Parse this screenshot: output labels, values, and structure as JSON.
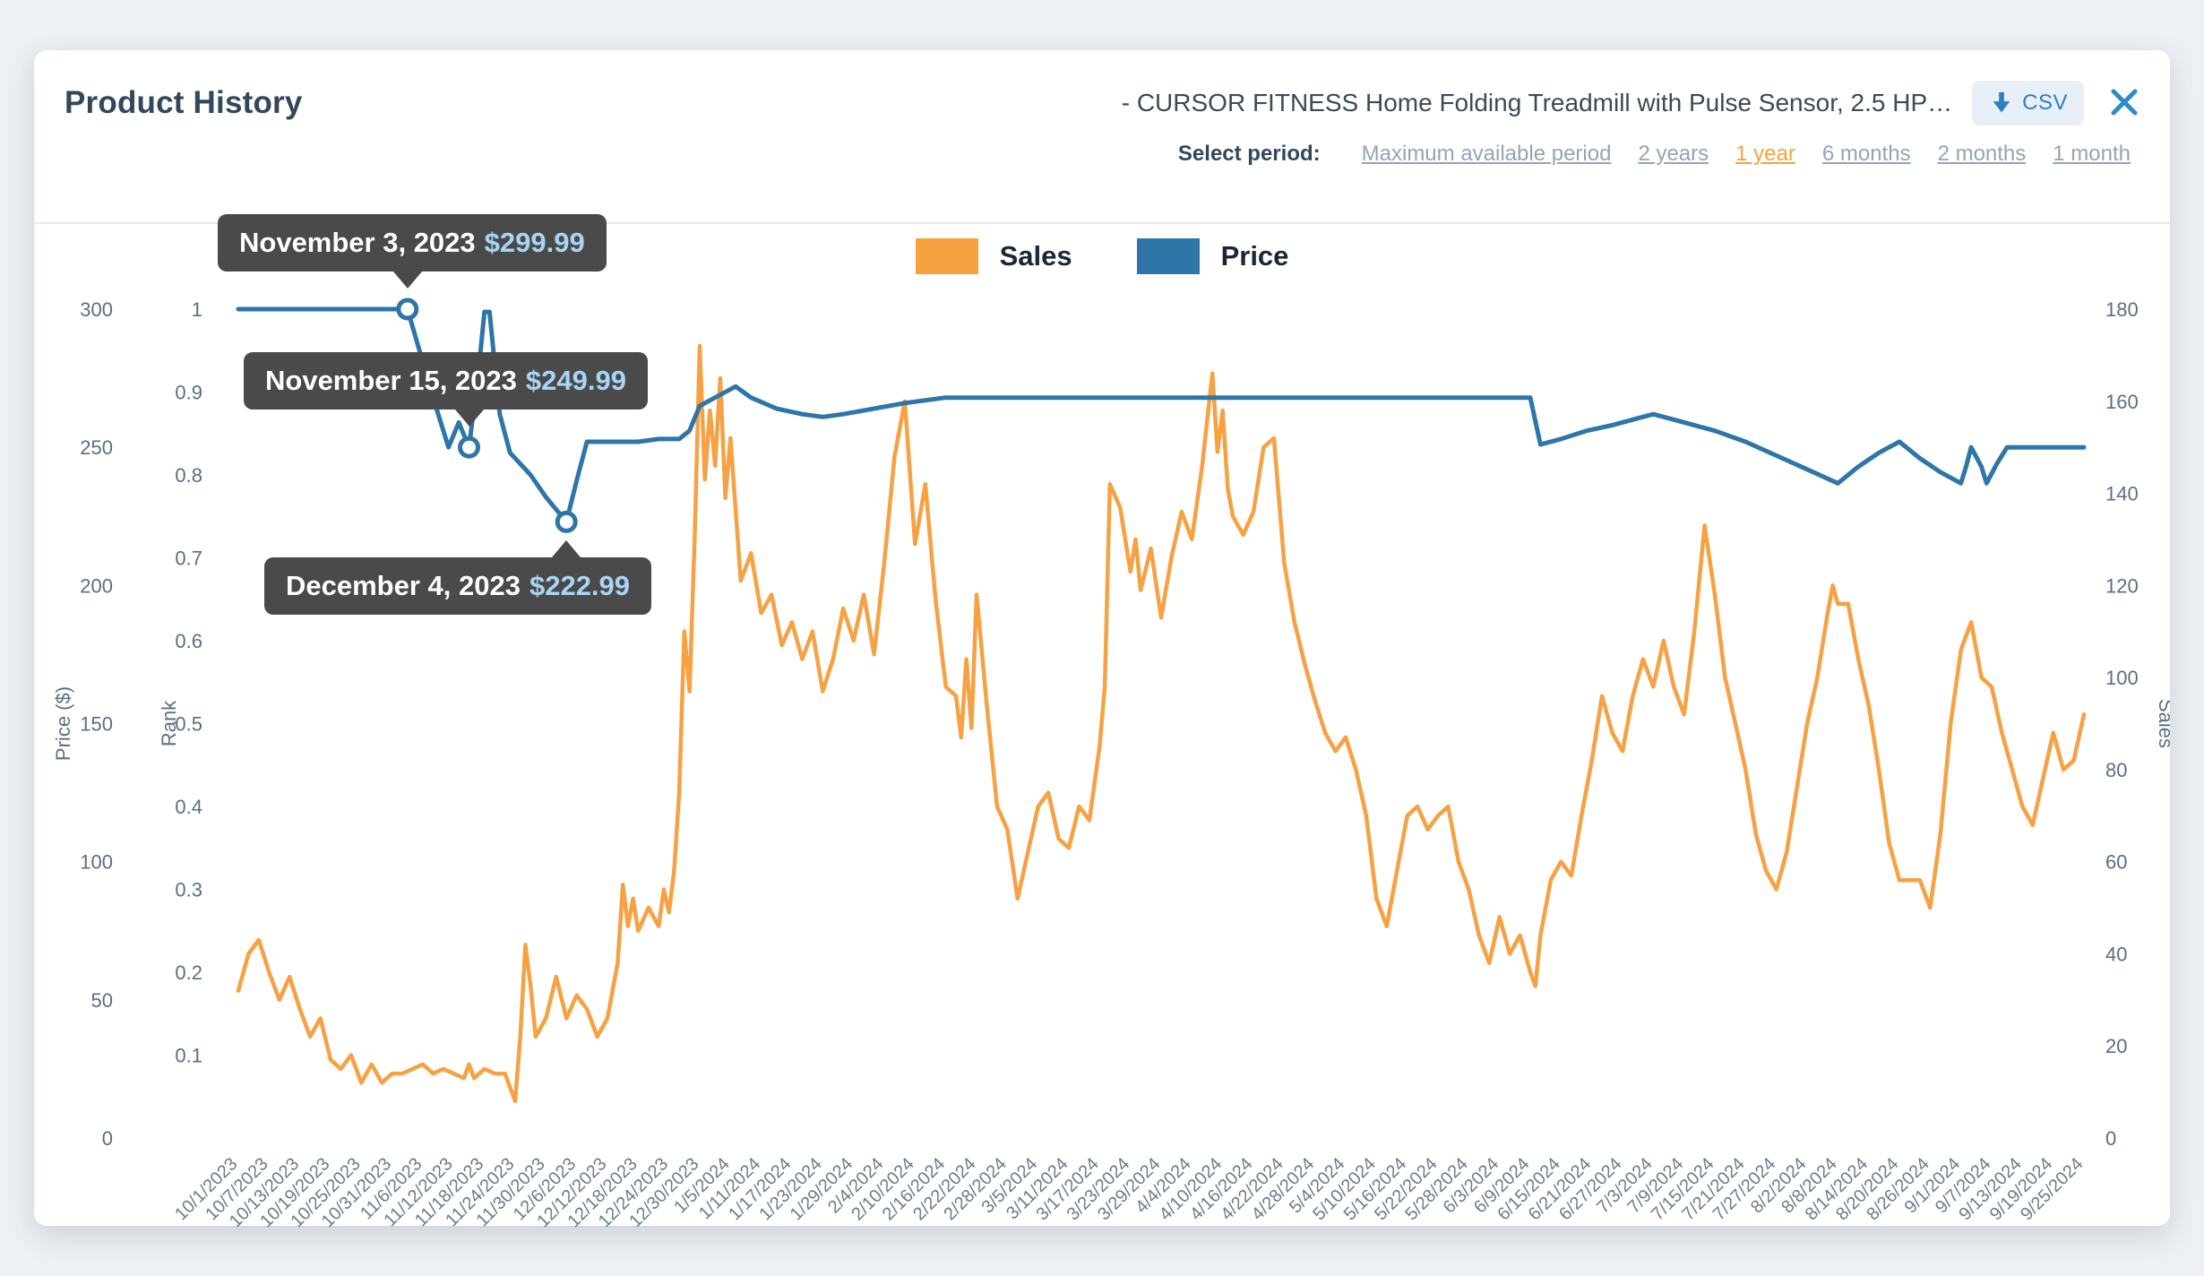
{
  "header": {
    "title": "Product History",
    "product_title": "- CURSOR FITNESS Home Folding Treadmill with Pulse Sensor, 2.5 HP…",
    "csv_label": "CSV"
  },
  "period": {
    "label": "Select period:",
    "selected_color": "#f5a33c",
    "options": [
      {
        "label": "Maximum available period",
        "selected": false
      },
      {
        "label": "2 years",
        "selected": false
      },
      {
        "label": "1 year",
        "selected": true
      },
      {
        "label": "6 months",
        "selected": false
      },
      {
        "label": "2 months",
        "selected": false
      },
      {
        "label": "1 month",
        "selected": false
      }
    ]
  },
  "legend": [
    {
      "label": "Sales",
      "color": "#F6A142"
    },
    {
      "label": "Price",
      "color": "#2E75A8"
    }
  ],
  "chart_data": {
    "type": "line",
    "title": "Product History",
    "x_domain": [
      0,
      360
    ],
    "x_tick_step_days": 6,
    "x_tick_labels": [
      "10/1/2023",
      "10/7/2023",
      "10/13/2023",
      "10/19/2023",
      "10/25/2023",
      "10/31/2023",
      "11/6/2023",
      "11/12/2023",
      "11/18/2023",
      "11/24/2023",
      "11/30/2023",
      "12/6/2023",
      "12/12/2023",
      "12/18/2023",
      "12/24/2023",
      "12/30/2023",
      "1/5/2024",
      "1/11/2024",
      "1/17/2024",
      "1/23/2024",
      "1/29/2024",
      "2/4/2024",
      "2/10/2024",
      "2/16/2024",
      "2/22/2024",
      "2/28/2024",
      "3/5/2024",
      "3/11/2024",
      "3/17/2024",
      "3/23/2024",
      "3/29/2024",
      "4/4/2024",
      "4/10/2024",
      "4/16/2024",
      "4/22/2024",
      "4/28/2024",
      "5/4/2024",
      "5/10/2024",
      "5/16/2024",
      "5/22/2024",
      "5/28/2024",
      "6/3/2024",
      "6/9/2024",
      "6/15/2024",
      "6/21/2024",
      "6/27/2024",
      "7/3/2024",
      "7/9/2024",
      "7/15/2024",
      "7/21/2024",
      "7/27/2024",
      "8/2/2024",
      "8/8/2024",
      "8/14/2024",
      "8/20/2024",
      "8/26/2024",
      "9/1/2024",
      "9/7/2024",
      "9/13/2024",
      "9/19/2024",
      "9/25/2024"
    ],
    "axes": {
      "price": {
        "label": "Price ($)",
        "min": 0,
        "max": 300,
        "ticks": [
          0,
          50,
          100,
          150,
          200,
          250,
          300
        ]
      },
      "rank": {
        "label": "Rank",
        "min": 0,
        "max": 1,
        "ticks": [
          0.1,
          0.2,
          0.3,
          0.4,
          0.5,
          0.6,
          0.7,
          0.8,
          0.9,
          1
        ]
      },
      "sales": {
        "label": "Sales",
        "min": 0,
        "max": 180,
        "ticks": [
          0,
          20,
          40,
          60,
          80,
          100,
          120,
          140,
          160,
          180
        ]
      }
    },
    "legend_position": "top-center",
    "grid": false,
    "series": [
      {
        "name": "Sales",
        "axis": "sales",
        "color": "#F6A142",
        "width": 4.5,
        "points": [
          [
            0,
            32
          ],
          [
            2,
            40
          ],
          [
            4,
            43
          ],
          [
            6,
            36
          ],
          [
            8,
            30
          ],
          [
            10,
            35
          ],
          [
            12,
            28
          ],
          [
            14,
            22
          ],
          [
            16,
            26
          ],
          [
            18,
            17
          ],
          [
            20,
            15
          ],
          [
            22,
            18
          ],
          [
            24,
            12
          ],
          [
            26,
            16
          ],
          [
            28,
            12
          ],
          [
            30,
            14
          ],
          [
            32,
            14
          ],
          [
            34,
            15
          ],
          [
            36,
            16
          ],
          [
            38,
            14
          ],
          [
            40,
            15
          ],
          [
            42,
            14
          ],
          [
            44,
            13
          ],
          [
            45,
            16
          ],
          [
            46,
            13
          ],
          [
            48,
            15
          ],
          [
            50,
            14
          ],
          [
            52,
            14
          ],
          [
            54,
            8
          ],
          [
            55,
            22
          ],
          [
            56,
            42
          ],
          [
            57,
            33
          ],
          [
            58,
            22
          ],
          [
            60,
            26
          ],
          [
            62,
            35
          ],
          [
            64,
            26
          ],
          [
            66,
            31
          ],
          [
            68,
            28
          ],
          [
            70,
            22
          ],
          [
            72,
            26
          ],
          [
            74,
            38
          ],
          [
            75,
            55
          ],
          [
            76,
            46
          ],
          [
            77,
            52
          ],
          [
            78,
            45
          ],
          [
            80,
            50
          ],
          [
            82,
            46
          ],
          [
            83,
            54
          ],
          [
            84,
            49
          ],
          [
            85,
            58
          ],
          [
            86,
            75
          ],
          [
            87,
            110
          ],
          [
            88,
            97
          ],
          [
            89,
            130
          ],
          [
            90,
            172
          ],
          [
            91,
            143
          ],
          [
            92,
            158
          ],
          [
            93,
            146
          ],
          [
            94,
            165
          ],
          [
            95,
            139
          ],
          [
            96,
            152
          ],
          [
            98,
            121
          ],
          [
            100,
            127
          ],
          [
            102,
            114
          ],
          [
            104,
            118
          ],
          [
            106,
            107
          ],
          [
            108,
            112
          ],
          [
            110,
            104
          ],
          [
            112,
            110
          ],
          [
            114,
            97
          ],
          [
            116,
            104
          ],
          [
            118,
            115
          ],
          [
            120,
            108
          ],
          [
            122,
            118
          ],
          [
            124,
            105
          ],
          [
            126,
            125
          ],
          [
            128,
            148
          ],
          [
            130,
            160
          ],
          [
            132,
            129
          ],
          [
            134,
            142
          ],
          [
            136,
            117
          ],
          [
            138,
            98
          ],
          [
            140,
            96
          ],
          [
            141,
            87
          ],
          [
            142,
            104
          ],
          [
            143,
            89
          ],
          [
            144,
            118
          ],
          [
            146,
            94
          ],
          [
            148,
            72
          ],
          [
            150,
            67
          ],
          [
            152,
            52
          ],
          [
            154,
            62
          ],
          [
            156,
            72
          ],
          [
            158,
            75
          ],
          [
            160,
            65
          ],
          [
            162,
            63
          ],
          [
            164,
            72
          ],
          [
            166,
            69
          ],
          [
            168,
            85
          ],
          [
            169,
            98
          ],
          [
            170,
            142
          ],
          [
            172,
            137
          ],
          [
            174,
            123
          ],
          [
            175,
            130
          ],
          [
            176,
            119
          ],
          [
            178,
            128
          ],
          [
            180,
            113
          ],
          [
            182,
            126
          ],
          [
            184,
            136
          ],
          [
            186,
            130
          ],
          [
            188,
            146
          ],
          [
            190,
            166
          ],
          [
            191,
            149
          ],
          [
            192,
            158
          ],
          [
            193,
            141
          ],
          [
            194,
            135
          ],
          [
            196,
            131
          ],
          [
            198,
            136
          ],
          [
            200,
            150
          ],
          [
            202,
            152
          ],
          [
            204,
            125
          ],
          [
            206,
            112
          ],
          [
            208,
            103
          ],
          [
            210,
            95
          ],
          [
            212,
            88
          ],
          [
            214,
            84
          ],
          [
            216,
            87
          ],
          [
            218,
            80
          ],
          [
            220,
            70
          ],
          [
            222,
            52
          ],
          [
            224,
            46
          ],
          [
            226,
            58
          ],
          [
            228,
            70
          ],
          [
            230,
            72
          ],
          [
            232,
            67
          ],
          [
            234,
            70
          ],
          [
            236,
            72
          ],
          [
            238,
            60
          ],
          [
            240,
            54
          ],
          [
            242,
            44
          ],
          [
            244,
            38
          ],
          [
            246,
            48
          ],
          [
            248,
            40
          ],
          [
            250,
            44
          ],
          [
            252,
            36
          ],
          [
            253,
            33
          ],
          [
            254,
            44
          ],
          [
            256,
            56
          ],
          [
            258,
            60
          ],
          [
            260,
            57
          ],
          [
            262,
            70
          ],
          [
            264,
            82
          ],
          [
            266,
            96
          ],
          [
            268,
            88
          ],
          [
            270,
            84
          ],
          [
            272,
            96
          ],
          [
            274,
            104
          ],
          [
            276,
            98
          ],
          [
            278,
            108
          ],
          [
            280,
            98
          ],
          [
            282,
            92
          ],
          [
            284,
            110
          ],
          [
            286,
            133
          ],
          [
            288,
            118
          ],
          [
            290,
            100
          ],
          [
            292,
            90
          ],
          [
            294,
            80
          ],
          [
            296,
            66
          ],
          [
            298,
            58
          ],
          [
            300,
            54
          ],
          [
            302,
            62
          ],
          [
            304,
            76
          ],
          [
            306,
            90
          ],
          [
            308,
            100
          ],
          [
            310,
            114
          ],
          [
            311,
            120
          ],
          [
            312,
            116
          ],
          [
            314,
            116
          ],
          [
            316,
            104
          ],
          [
            318,
            94
          ],
          [
            320,
            80
          ],
          [
            322,
            64
          ],
          [
            324,
            56
          ],
          [
            326,
            56
          ],
          [
            328,
            56
          ],
          [
            330,
            50
          ],
          [
            332,
            66
          ],
          [
            334,
            90
          ],
          [
            336,
            106
          ],
          [
            338,
            112
          ],
          [
            340,
            100
          ],
          [
            342,
            98
          ],
          [
            344,
            88
          ],
          [
            346,
            80
          ],
          [
            348,
            72
          ],
          [
            350,
            68
          ],
          [
            352,
            78
          ],
          [
            354,
            88
          ],
          [
            356,
            80
          ],
          [
            358,
            82
          ],
          [
            360,
            92
          ]
        ]
      },
      {
        "name": "Price",
        "axis": "price",
        "color": "#2E75A8",
        "width": 5,
        "points": [
          [
            0,
            299.99
          ],
          [
            32,
            299.99
          ],
          [
            33,
            299.99
          ],
          [
            38,
            268
          ],
          [
            41,
            250
          ],
          [
            43,
            259
          ],
          [
            45,
            249.99
          ],
          [
            47,
            280
          ],
          [
            48,
            299
          ],
          [
            49,
            299
          ],
          [
            51,
            262
          ],
          [
            53,
            248
          ],
          [
            57,
            240
          ],
          [
            60,
            232
          ],
          [
            64,
            222.99
          ],
          [
            66,
            238
          ],
          [
            68,
            252
          ],
          [
            78,
            252
          ],
          [
            82,
            253
          ],
          [
            86,
            253
          ],
          [
            88,
            256
          ],
          [
            90,
            265
          ],
          [
            94,
            269
          ],
          [
            97,
            272
          ],
          [
            100,
            268
          ],
          [
            105,
            264
          ],
          [
            110,
            262
          ],
          [
            114,
            261
          ],
          [
            118,
            262
          ],
          [
            124,
            264
          ],
          [
            130,
            266
          ],
          [
            138,
            268
          ],
          [
            160,
            268
          ],
          [
            180,
            268
          ],
          [
            200,
            268
          ],
          [
            220,
            268
          ],
          [
            240,
            268
          ],
          [
            252,
            268
          ],
          [
            254,
            251
          ],
          [
            258,
            253
          ],
          [
            263,
            256
          ],
          [
            268,
            258
          ],
          [
            272,
            260
          ],
          [
            276,
            262
          ],
          [
            282,
            259
          ],
          [
            288,
            256
          ],
          [
            294,
            252
          ],
          [
            300,
            247
          ],
          [
            306,
            242
          ],
          [
            312,
            237
          ],
          [
            316,
            243
          ],
          [
            320,
            248
          ],
          [
            324,
            252
          ],
          [
            328,
            246
          ],
          [
            332,
            241
          ],
          [
            336,
            237
          ],
          [
            337,
            243
          ],
          [
            338,
            250
          ],
          [
            340,
            243
          ],
          [
            341,
            237
          ],
          [
            343,
            244
          ],
          [
            345,
            250
          ],
          [
            352,
            250
          ],
          [
            360,
            250
          ]
        ]
      }
    ],
    "annotations": [
      {
        "date": "November 3, 2023",
        "price_label": "$299.99",
        "day": 33,
        "price": 299.99,
        "placement": "above",
        "dx": -212
      },
      {
        "date": "November 15, 2023",
        "price_label": "$249.99",
        "day": 45,
        "price": 249.99,
        "placement": "above",
        "dx": -252
      },
      {
        "date": "December 4, 2023",
        "price_label": "$222.99",
        "day": 64,
        "price": 222.99,
        "placement": "below",
        "dx": -337
      }
    ]
  }
}
